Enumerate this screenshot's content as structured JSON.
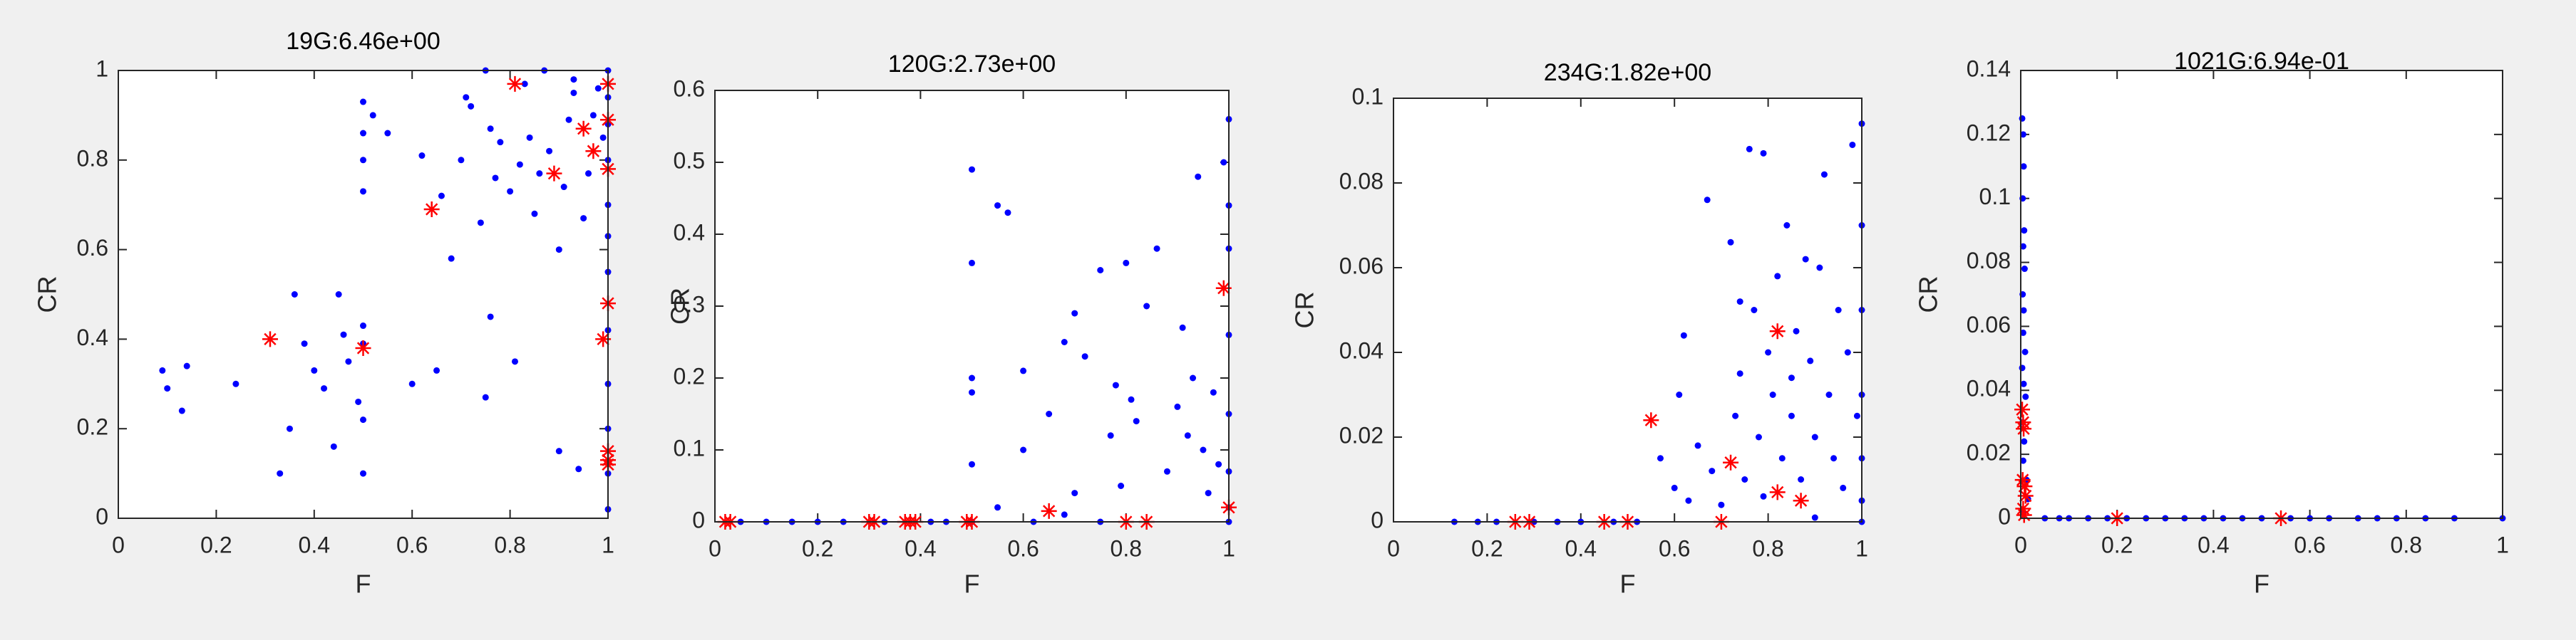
{
  "chart_data": [
    {
      "type": "scatter",
      "title": "19G:6.46e+00",
      "xlabel": "F",
      "ylabel": "CR",
      "xlim": [
        0,
        1
      ],
      "ylim": [
        0,
        1
      ],
      "xticks": [
        0,
        0.2,
        0.4,
        0.6,
        0.8,
        1
      ],
      "yticks": [
        0,
        0.2,
        0.4,
        0.6,
        0.8,
        1
      ],
      "series": [
        {
          "color": "#0000ff",
          "marker": "dot",
          "x": [
            0.09,
            0.13,
            0.14,
            0.1,
            0.24,
            0.33,
            0.35,
            0.36,
            0.38,
            0.4,
            0.42,
            0.44,
            0.45,
            0.46,
            0.47,
            0.49,
            0.5,
            0.5,
            0.5,
            0.5,
            0.5,
            0.5,
            0.5,
            0.5,
            0.52,
            0.55,
            0.6,
            0.62,
            0.65,
            0.66,
            0.7,
            0.72,
            0.74,
            0.75,
            0.76,
            0.77,
            0.78,
            0.8,
            0.82,
            0.83,
            0.84,
            0.85,
            0.86,
            0.87,
            0.88,
            0.9,
            0.91,
            0.92,
            0.93,
            0.94,
            0.95,
            0.96,
            0.97,
            0.98,
            0.99,
            1,
            1,
            1,
            1,
            1,
            1,
            1,
            1,
            1,
            1,
            1,
            1,
            0.75,
            0.76,
            0.9,
            0.93,
            0.81,
            0.71,
            0.68
          ],
          "values": [
            0.33,
            0.24,
            0.34,
            0.29,
            0.3,
            0.1,
            0.2,
            0.5,
            0.39,
            0.33,
            0.29,
            0.16,
            0.5,
            0.41,
            0.35,
            0.26,
            0.1,
            0.22,
            0.43,
            0.39,
            0.8,
            0.86,
            0.93,
            0.73,
            0.9,
            0.86,
            0.3,
            0.81,
            0.33,
            0.72,
            0.8,
            0.92,
            0.66,
            0.27,
            0.87,
            0.76,
            0.84,
            0.73,
            0.79,
            0.97,
            0.85,
            0.68,
            0.77,
            1,
            0.82,
            0.15,
            0.74,
            0.89,
            0.95,
            0.11,
            0.67,
            0.77,
            0.9,
            0.96,
            0.85,
            0.02,
            0.1,
            0.2,
            0.3,
            0.42,
            0.55,
            0.63,
            0.7,
            0.8,
            0.88,
            0.94,
            1,
            1,
            0.45,
            0.6,
            0.98,
            0.35,
            0.94,
            0.58
          ]
        },
        {
          "color": "#ff0000",
          "marker": "star",
          "x": [
            0.31,
            0.5,
            0.64,
            0.81,
            0.89,
            0.95,
            0.97,
            0.99,
            1,
            1,
            1,
            1,
            1,
            1,
            1
          ],
          "values": [
            0.4,
            0.38,
            0.69,
            0.97,
            0.77,
            0.87,
            0.82,
            0.4,
            0.97,
            0.89,
            0.78,
            0.48,
            0.15,
            0.13,
            0.12
          ]
        }
      ]
    },
    {
      "type": "scatter",
      "title": "120G:2.73e+00",
      "xlabel": "F",
      "ylabel": "CR",
      "xlim": [
        0,
        1
      ],
      "ylim": [
        0,
        0.6
      ],
      "xticks": [
        0,
        0.2,
        0.4,
        0.6,
        0.8,
        1
      ],
      "yticks": [
        0,
        0.1,
        0.2,
        0.3,
        0.4,
        0.5,
        0.6
      ],
      "series": [
        {
          "color": "#0000ff",
          "marker": "dot",
          "x": [
            0.05,
            0.1,
            0.15,
            0.2,
            0.25,
            0.33,
            0.42,
            0.45,
            0.5,
            0.5,
            0.5,
            0.5,
            0.5,
            0.5,
            0.55,
            0.57,
            0.6,
            0.62,
            0.65,
            0.68,
            0.7,
            0.72,
            0.75,
            0.77,
            0.78,
            0.79,
            0.8,
            0.81,
            0.82,
            0.84,
            0.86,
            0.88,
            0.9,
            0.91,
            0.92,
            0.93,
            0.94,
            0.95,
            0.96,
            0.97,
            0.98,
            0.99,
            1,
            1,
            1,
            1,
            1,
            1,
            1,
            1,
            0.55,
            0.68,
            0.75,
            0.6,
            0.7
          ],
          "values": [
            0,
            0,
            0,
            0,
            0,
            0,
            0,
            0,
            0.49,
            0.36,
            0.2,
            0.18,
            0.08,
            0,
            0.44,
            0.43,
            0.1,
            0,
            0.15,
            0.25,
            0.29,
            0.23,
            0.35,
            0.12,
            0.19,
            0.05,
            0.36,
            0.17,
            0.14,
            0.3,
            0.38,
            0.07,
            0.16,
            0.27,
            0.12,
            0.2,
            0.48,
            0.1,
            0.04,
            0.18,
            0.08,
            0.5,
            0.56,
            0.44,
            0.38,
            0.26,
            0.15,
            0.07,
            0.02,
            0,
            0.02,
            0.01,
            0,
            0.21,
            0.04
          ]
        },
        {
          "color": "#ff0000",
          "marker": "star",
          "x": [
            0.02,
            0.03,
            0.3,
            0.31,
            0.37,
            0.38,
            0.39,
            0.49,
            0.5,
            0.65,
            0.8,
            0.84,
            0.99,
            1
          ],
          "values": [
            0,
            0,
            0,
            0,
            0,
            0,
            0,
            0,
            0,
            0.015,
            0,
            0,
            0.325,
            0.02
          ]
        }
      ]
    },
    {
      "type": "scatter",
      "title": "234G:1.82e+00",
      "xlabel": "F",
      "ylabel": "CR",
      "xlim": [
        0,
        1
      ],
      "ylim": [
        0,
        0.1
      ],
      "xticks": [
        0,
        0.2,
        0.4,
        0.6,
        0.8,
        1
      ],
      "yticks": [
        0,
        0.02,
        0.04,
        0.06,
        0.08,
        0.1
      ],
      "series": [
        {
          "color": "#0000ff",
          "marker": "dot",
          "x": [
            0.13,
            0.18,
            0.22,
            0.3,
            0.35,
            0.4,
            0.47,
            0.52,
            0.57,
            0.6,
            0.61,
            0.63,
            0.65,
            0.67,
            0.68,
            0.7,
            0.72,
            0.73,
            0.74,
            0.75,
            0.76,
            0.77,
            0.78,
            0.79,
            0.8,
            0.81,
            0.82,
            0.83,
            0.84,
            0.85,
            0.86,
            0.87,
            0.88,
            0.89,
            0.9,
            0.91,
            0.92,
            0.93,
            0.94,
            0.95,
            0.96,
            0.97,
            0.98,
            0.99,
            1,
            1,
            1,
            1,
            1,
            1,
            1,
            0.74,
            0.79,
            0.85,
            0.9,
            0.62
          ],
          "values": [
            0,
            0,
            0,
            0,
            0,
            0,
            0,
            0,
            0.015,
            0.008,
            0.03,
            0.005,
            0.018,
            0.076,
            0.012,
            0.004,
            0.066,
            0.025,
            0.035,
            0.01,
            0.088,
            0.05,
            0.02,
            0.087,
            0.04,
            0.03,
            0.058,
            0.015,
            0.07,
            0.025,
            0.045,
            0.01,
            0.062,
            0.038,
            0.02,
            0.06,
            0.082,
            0.03,
            0.015,
            0.05,
            0.008,
            0.04,
            0.089,
            0.025,
            0.094,
            0.07,
            0.05,
            0.03,
            0.015,
            0.005,
            0,
            0.052,
            0.006,
            0.034,
            0.001,
            0.044
          ]
        },
        {
          "color": "#ff0000",
          "marker": "star",
          "x": [
            0.26,
            0.29,
            0.45,
            0.5,
            0.55,
            0.7,
            0.72,
            0.82,
            0.82,
            0.87
          ],
          "values": [
            0,
            0,
            0,
            0,
            0.024,
            0,
            0.014,
            0.045,
            0.007,
            0.005
          ]
        }
      ]
    },
    {
      "type": "scatter",
      "title": "1021G:6.94e-01",
      "xlabel": "F",
      "ylabel": "CR",
      "xlim": [
        0,
        1
      ],
      "ylim": [
        0,
        0.14
      ],
      "xticks": [
        0,
        0.2,
        0.4,
        0.6,
        0.8,
        1
      ],
      "yticks": [
        0,
        0.02,
        0.04,
        0.06,
        0.08,
        0.1,
        0.12,
        0.14
      ],
      "series": [
        {
          "color": "#0000ff",
          "marker": "dot",
          "x": [
            0.003,
            0.005,
            0.006,
            0.004,
            0.007,
            0.005,
            0.008,
            0.004,
            0.006,
            0.005,
            0.009,
            0.003,
            0.006,
            0.01,
            0.004,
            0.007,
            0.005,
            0.012,
            0.015,
            0.005,
            0.05,
            0.08,
            0.1,
            0.14,
            0.18,
            0.22,
            0.26,
            0.3,
            0.34,
            0.38,
            0.42,
            0.46,
            0.5,
            0.56,
            0.6,
            0.64,
            0.7,
            0.74,
            0.78,
            0.84,
            0.9,
            1
          ],
          "values": [
            0.125,
            0.12,
            0.11,
            0.1,
            0.09,
            0.085,
            0.078,
            0.07,
            0.065,
            0.058,
            0.052,
            0.047,
            0.042,
            0.038,
            0.03,
            0.024,
            0.018,
            0.012,
            0.006,
            0.002,
            0,
            0,
            0,
            0,
            0,
            0,
            0,
            0,
            0,
            0,
            0,
            0,
            0,
            0,
            0,
            0,
            0,
            0,
            0,
            0,
            0,
            0
          ]
        },
        {
          "color": "#ff0000",
          "marker": "star",
          "x": [
            0.003,
            0.005,
            0.006,
            0.004,
            0.008,
            0.01,
            0.005,
            0.007,
            0.2,
            0.54
          ],
          "values": [
            0.034,
            0.03,
            0.028,
            0.012,
            0.01,
            0.007,
            0.003,
            0.001,
            0,
            0
          ]
        }
      ]
    }
  ]
}
